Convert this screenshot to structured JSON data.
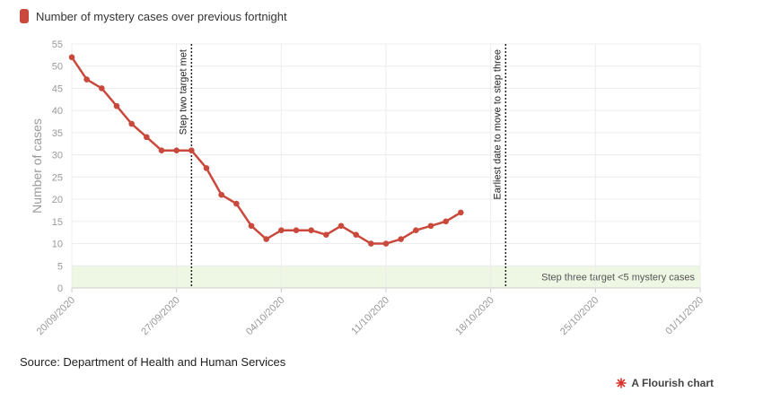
{
  "legend": {
    "label": "Number of mystery cases over previous fortnight",
    "color": "#c94a3d"
  },
  "source": "Source: Department of Health and Human Services",
  "credit": {
    "label": "A Flourish chart",
    "icon": "flourish-logo-icon"
  },
  "chart_data": {
    "type": "line",
    "ylabel": "Number of cases",
    "xlabel": "",
    "ylim": [
      0,
      55
    ],
    "yticks": [
      0,
      5,
      10,
      15,
      20,
      25,
      30,
      35,
      40,
      45,
      50,
      55
    ],
    "xlim": [
      "20/09/2020",
      "01/11/2020"
    ],
    "xticks": [
      "20/09/2020",
      "27/09/2020",
      "04/10/2020",
      "11/10/2020",
      "18/10/2020",
      "25/10/2020",
      "01/11/2020"
    ],
    "grid": true,
    "series": [
      {
        "name": "Number of mystery cases over previous fortnight",
        "color": "#c94a3d",
        "x": [
          "20/09/2020",
          "21/09/2020",
          "22/09/2020",
          "23/09/2020",
          "24/09/2020",
          "25/09/2020",
          "26/09/2020",
          "27/09/2020",
          "28/09/2020",
          "29/09/2020",
          "30/09/2020",
          "01/10/2020",
          "02/10/2020",
          "03/10/2020",
          "04/10/2020",
          "05/10/2020",
          "06/10/2020",
          "07/10/2020",
          "08/10/2020",
          "09/10/2020",
          "10/10/2020",
          "11/10/2020",
          "12/10/2020",
          "13/10/2020",
          "14/10/2020",
          "15/10/2020",
          "16/10/2020"
        ],
        "values": [
          52,
          47,
          45,
          41,
          37,
          34,
          31,
          31,
          31,
          27,
          21,
          19,
          14,
          11,
          13,
          13,
          13,
          12,
          14,
          12,
          10,
          10,
          11,
          13,
          14,
          15,
          17
        ]
      }
    ],
    "annotations": [
      {
        "type": "vline",
        "x": "28/09/2020",
        "label": "Step two target met"
      },
      {
        "type": "vline",
        "x": "19/10/2020",
        "label": "Earliest date to move to step three"
      }
    ],
    "bands": [
      {
        "y0": 0,
        "y1": 5,
        "color": "#eef6e4",
        "label": "Step three target <5 mystery cases"
      }
    ]
  }
}
